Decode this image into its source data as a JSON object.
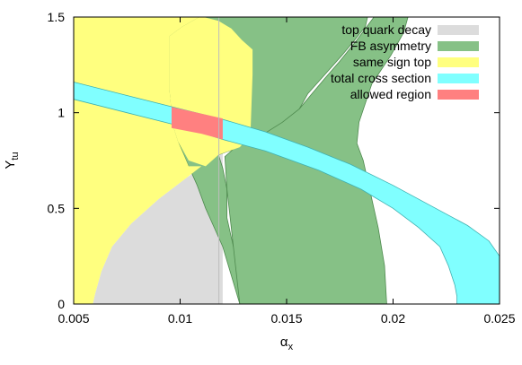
{
  "chart_data": {
    "type": "area",
    "xlabel": "α",
    "xlabel_sub": "x",
    "ylabel": "Y",
    "ylabel_sub": "tu",
    "xlim": [
      0.005,
      0.025
    ],
    "ylim": [
      0,
      1.5
    ],
    "x_ticks": [
      {
        "value": 0.005,
        "label": "0.005"
      },
      {
        "value": 0.01,
        "label": "0.01"
      },
      {
        "value": 0.015,
        "label": "0.015"
      },
      {
        "value": 0.02,
        "label": "0.02"
      },
      {
        "value": 0.025,
        "label": "0.025"
      }
    ],
    "y_ticks": [
      {
        "value": 0,
        "label": "0"
      },
      {
        "value": 0.5,
        "label": "0.5"
      },
      {
        "value": 1,
        "label": "1"
      },
      {
        "value": 1.5,
        "label": "1.5"
      }
    ],
    "grid": false,
    "legend_position": "top-right",
    "series": [
      {
        "name": "top quark decay",
        "color": "#dcdcdc",
        "regions": [
          [
            [
              0.0059,
              0
            ],
            [
              0.006,
              0.05
            ],
            [
              0.0063,
              0.17
            ],
            [
              0.0068,
              0.3
            ],
            [
              0.0077,
              0.42
            ],
            [
              0.009,
              0.55
            ],
            [
              0.0103,
              0.66
            ],
            [
              0.0111,
              0.72
            ],
            [
              0.0116,
              0.76
            ],
            [
              0.012,
              0.79
            ],
            [
              0.012,
              0
            ],
            [
              0.0059,
              0
            ]
          ],
          [
            [
              0.019,
              1.5
            ],
            [
              0.0193,
              1.48
            ],
            [
              0.0196,
              1.5
            ]
          ]
        ]
      },
      {
        "name": "FB asymmetry",
        "color": "#86c186",
        "stroke": "#4f8a4f",
        "regions": [
          [
            [
              0.0128,
              0
            ],
            [
              0.0124,
              0.15
            ],
            [
              0.012,
              0.3
            ],
            [
              0.0112,
              0.5
            ],
            [
              0.0108,
              0.62
            ],
            [
              0.0104,
              0.72
            ],
            [
              0.0099,
              0.85
            ],
            [
              0.0097,
              0.92
            ],
            [
              0.0096,
              1.0
            ],
            [
              0.0095,
              1.12
            ],
            [
              0.0095,
              1.25
            ],
            [
              0.0095,
              1.4
            ],
            [
              0.0101,
              1.45
            ],
            [
              0.0109,
              1.5
            ],
            [
              0.0188,
              1.5
            ],
            [
              0.0187,
              1.45
            ],
            [
              0.0182,
              1.38
            ],
            [
              0.0176,
              1.3
            ],
            [
              0.0168,
              1.2
            ],
            [
              0.016,
              1.1
            ],
            [
              0.0155,
              1.0
            ],
            [
              0.015,
              0.95
            ],
            [
              0.014,
              0.88
            ],
            [
              0.0128,
              0.82
            ],
            [
              0.0118,
              0.78
            ],
            [
              0.012,
              0.71
            ],
            [
              0.0122,
              0.6
            ],
            [
              0.0122,
              0.45
            ],
            [
              0.0125,
              0.3
            ],
            [
              0.0128,
              0.15
            ],
            [
              0.0128,
              0
            ]
          ],
          [
            [
              0.0128,
              0
            ],
            [
              0.0197,
              0
            ],
            [
              0.0196,
              0.2
            ],
            [
              0.0193,
              0.4
            ],
            [
              0.0189,
              0.6
            ],
            [
              0.0186,
              0.75
            ],
            [
              0.0183,
              0.84
            ],
            [
              0.0184,
              0.95
            ],
            [
              0.0187,
              1.05
            ],
            [
              0.019,
              1.15
            ],
            [
              0.0193,
              1.2
            ],
            [
              0.0199,
              1.3
            ],
            [
              0.0205,
              1.42
            ],
            [
              0.0207,
              1.5
            ],
            [
              0.0191,
              1.5
            ],
            [
              0.0183,
              1.38
            ],
            [
              0.0175,
              1.27
            ],
            [
              0.0168,
              1.18
            ],
            [
              0.0162,
              1.1
            ],
            [
              0.0156,
              1.02
            ],
            [
              0.0148,
              0.95
            ],
            [
              0.0138,
              0.88
            ],
            [
              0.0128,
              0.84
            ],
            [
              0.0121,
              0.77
            ],
            [
              0.0122,
              0.6
            ],
            [
              0.0124,
              0.4
            ],
            [
              0.0126,
              0.2
            ],
            [
              0.0128,
              0
            ]
          ]
        ]
      },
      {
        "name": "same sign top",
        "color": "#ffff7f",
        "regions": [
          [
            [
              0.005,
              0
            ],
            [
              0.0059,
              0
            ],
            [
              0.006,
              0.05
            ],
            [
              0.0063,
              0.17
            ],
            [
              0.0068,
              0.3
            ],
            [
              0.0077,
              0.42
            ],
            [
              0.009,
              0.55
            ],
            [
              0.0103,
              0.66
            ],
            [
              0.011,
              0.72
            ],
            [
              0.0104,
              0.72
            ],
            [
              0.0099,
              0.85
            ],
            [
              0.0097,
              0.92
            ],
            [
              0.0096,
              1.0
            ],
            [
              0.0095,
              1.12
            ],
            [
              0.0095,
              1.25
            ],
            [
              0.0095,
              1.4
            ],
            [
              0.0101,
              1.45
            ],
            [
              0.0109,
              1.5
            ],
            [
              0.005,
              1.5
            ],
            [
              0.005,
              0
            ]
          ],
          [
            [
              0.0112,
              0.72
            ],
            [
              0.0118,
              0.78
            ],
            [
              0.0128,
              0.82
            ],
            [
              0.0133,
              0.88
            ],
            [
              0.0134,
              1.2
            ],
            [
              0.0134,
              1.33
            ],
            [
              0.0129,
              1.38
            ],
            [
              0.0124,
              1.44
            ],
            [
              0.0118,
              1.48
            ],
            [
              0.0111,
              1.5
            ],
            [
              0.0109,
              1.5
            ],
            [
              0.0101,
              1.45
            ],
            [
              0.0095,
              1.4
            ],
            [
              0.0095,
              1.25
            ],
            [
              0.0095,
              1.12
            ],
            [
              0.0096,
              1.0
            ],
            [
              0.0097,
              0.92
            ],
            [
              0.0099,
              0.85
            ],
            [
              0.0104,
              0.75
            ],
            [
              0.0112,
              0.72
            ]
          ]
        ]
      },
      {
        "name": "total cross section",
        "color": "#80ffff",
        "stroke": "#40b0b0",
        "regions": [
          [
            [
              0.005,
              1.16
            ],
            [
              0.0075,
              1.09
            ],
            [
              0.01,
              1.02
            ],
            [
              0.012,
              0.965
            ],
            [
              0.014,
              0.9
            ],
            [
              0.016,
              0.82
            ],
            [
              0.018,
              0.73
            ],
            [
              0.02,
              0.62
            ],
            [
              0.022,
              0.5
            ],
            [
              0.0235,
              0.41
            ],
            [
              0.0245,
              0.33
            ],
            [
              0.025,
              0.25
            ],
            [
              0.025,
              0
            ],
            [
              0.023,
              0
            ],
            [
              0.023,
              0.04
            ],
            [
              0.0229,
              0.1
            ],
            [
              0.0226,
              0.2
            ],
            [
              0.0222,
              0.3
            ],
            [
              0.0212,
              0.4
            ],
            [
              0.02,
              0.5
            ],
            [
              0.0185,
              0.6
            ],
            [
              0.0165,
              0.7
            ],
            [
              0.014,
              0.8
            ],
            [
              0.012,
              0.86
            ],
            [
              0.01,
              0.93
            ],
            [
              0.0075,
              1.0
            ],
            [
              0.005,
              1.07
            ],
            [
              0.005,
              1.16
            ]
          ]
        ]
      },
      {
        "name": "allowed region",
        "color": "#ff8080",
        "regions": [
          [
            [
              0.0096,
              0.92
            ],
            [
              0.0096,
              1.03
            ],
            [
              0.0106,
              1.005
            ],
            [
              0.012,
              0.97
            ],
            [
              0.012,
              0.86
            ],
            [
              0.011,
              0.89
            ],
            [
              0.0096,
              0.92
            ]
          ]
        ]
      }
    ]
  }
}
